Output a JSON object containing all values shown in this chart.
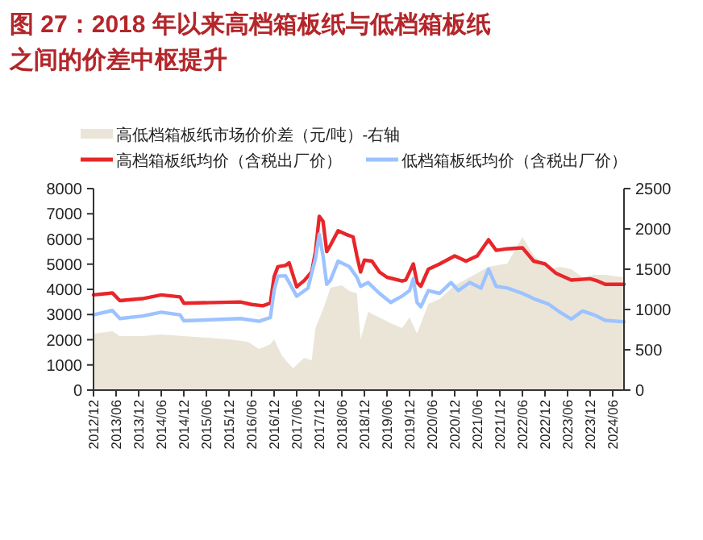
{
  "chart_data": {
    "type": "line",
    "title": "图 27：2018 年以来高档箱板纸与低档箱板纸之间的价差中枢提升",
    "legend": "top",
    "grid": false,
    "marker": "none",
    "line_style": "solid",
    "xlim": [
      "2012-12",
      "2024-09"
    ],
    "xticks": [
      {
        "value": "2012-12",
        "label": "2012/12"
      },
      {
        "value": "2013-06",
        "label": "2013/06"
      },
      {
        "value": "2013-12",
        "label": "2013/12"
      },
      {
        "value": "2014-06",
        "label": "2014/06"
      },
      {
        "value": "2014-12",
        "label": "2014/12"
      },
      {
        "value": "2015-06",
        "label": "2015/06"
      },
      {
        "value": "2015-12",
        "label": "2015/12"
      },
      {
        "value": "2016-06",
        "label": "2016/06"
      },
      {
        "value": "2016-12",
        "label": "2016/12"
      },
      {
        "value": "2017-06",
        "label": "2017/06"
      },
      {
        "value": "2017-12",
        "label": "2017/12"
      },
      {
        "value": "2018-06",
        "label": "2018/06"
      },
      {
        "value": "2018-12",
        "label": "2018/12"
      },
      {
        "value": "2019-06",
        "label": "2019/06"
      },
      {
        "value": "2019-12",
        "label": "2019/12"
      },
      {
        "value": "2020-06",
        "label": "2020/06"
      },
      {
        "value": "2020-12",
        "label": "2020/12"
      },
      {
        "value": "2021-06",
        "label": "2021/06"
      },
      {
        "value": "2021-12",
        "label": "2021/12"
      },
      {
        "value": "2022-06",
        "label": "2022/06"
      },
      {
        "value": "2022-12",
        "label": "2022/12"
      },
      {
        "value": "2023-06",
        "label": "2023/06"
      },
      {
        "value": "2023-12",
        "label": "2023/12"
      },
      {
        "value": "2024-06",
        "label": "2024/06"
      }
    ],
    "ylim": [
      0,
      8000
    ],
    "yticks": [
      0,
      1000,
      2000,
      3000,
      4000,
      5000,
      6000,
      7000,
      8000
    ],
    "y2lim": [
      0,
      2500
    ],
    "y2ticks": [
      0,
      500,
      1000,
      1500,
      2000,
      2500
    ],
    "series": [
      {
        "name": "高低档箱板纸市场价价差（元/吨）-右轴",
        "type": "area",
        "axis": "y2",
        "color": "#ebe5d8",
        "x": [
          "2012-12",
          "2013-05",
          "2013-07",
          "2014-01",
          "2014-06",
          "2014-12",
          "2015-12",
          "2016-05",
          "2016-08",
          "2016-11",
          "2016-12",
          "2017-02",
          "2017-05",
          "2017-08",
          "2017-10",
          "2017-11",
          "2018-01",
          "2018-03",
          "2018-06",
          "2018-08",
          "2018-10",
          "2018-11",
          "2019-01",
          "2019-04",
          "2019-07",
          "2019-10",
          "2019-12",
          "2020-02",
          "2020-05",
          "2020-08",
          "2020-12",
          "2021-04",
          "2021-09",
          "2022-02",
          "2022-06",
          "2022-09",
          "2023-01",
          "2023-04",
          "2023-07",
          "2023-10",
          "2024-01",
          "2024-04",
          "2024-09"
        ],
        "values": [
          700,
          730,
          670,
          670,
          690,
          670,
          630,
          600,
          510,
          570,
          630,
          430,
          270,
          400,
          370,
          770,
          1000,
          1270,
          1300,
          1230,
          1200,
          630,
          970,
          900,
          830,
          770,
          900,
          700,
          1070,
          1130,
          1300,
          1400,
          1530,
          1570,
          1900,
          1670,
          1500,
          1530,
          1500,
          1400,
          1430,
          1430,
          1400
        ]
      },
      {
        "name": "高档箱板纸均价（含税出厂价）",
        "color": "#e8262a",
        "x": [
          "2012-12",
          "2013-04",
          "2013-05",
          "2013-07",
          "2014-01",
          "2014-06",
          "2014-11",
          "2014-12",
          "2016-03",
          "2016-06",
          "2016-09",
          "2016-11",
          "2016-12",
          "2017-01",
          "2017-03",
          "2017-04",
          "2017-06",
          "2017-08",
          "2017-10",
          "2017-11",
          "2017-12",
          "2018-01",
          "2018-02",
          "2018-03",
          "2018-05",
          "2018-07",
          "2018-09",
          "2018-10",
          "2018-11",
          "2018-12",
          "2019-02",
          "2019-04",
          "2019-06",
          "2019-10",
          "2019-11",
          "2020-01",
          "2020-02",
          "2020-03",
          "2020-05",
          "2020-08",
          "2020-12",
          "2021-03",
          "2021-06",
          "2021-09",
          "2021-11",
          "2022-02",
          "2022-06",
          "2022-09",
          "2022-12",
          "2023-03",
          "2023-07",
          "2023-12",
          "2024-02",
          "2024-04",
          "2024-09"
        ],
        "values": [
          3780,
          3840,
          3860,
          3550,
          3630,
          3780,
          3700,
          3450,
          3500,
          3400,
          3350,
          3450,
          4500,
          4900,
          4950,
          5050,
          4100,
          4350,
          4700,
          5500,
          6900,
          6700,
          5500,
          5760,
          6330,
          6190,
          6080,
          5330,
          4690,
          5160,
          5120,
          4690,
          4480,
          4330,
          4370,
          5010,
          4270,
          4120,
          4800,
          5010,
          5330,
          5120,
          5330,
          5970,
          5550,
          5610,
          5650,
          5120,
          5010,
          4630,
          4370,
          4420,
          4330,
          4200,
          4200
        ]
      },
      {
        "name": "低档箱板纸均价（含税出厂价）",
        "color": "#9cc3ff",
        "x": [
          "2012-12",
          "2013-05",
          "2013-07",
          "2014-01",
          "2014-06",
          "2014-11",
          "2014-12",
          "2016-03",
          "2016-08",
          "2016-11",
          "2016-12",
          "2017-01",
          "2017-03",
          "2017-06",
          "2017-09",
          "2017-11",
          "2017-12",
          "2018-01",
          "2018-02",
          "2018-03",
          "2018-05",
          "2018-08",
          "2018-10",
          "2018-11",
          "2019-01",
          "2019-04",
          "2019-07",
          "2019-10",
          "2019-12",
          "2020-01",
          "2020-02",
          "2020-03",
          "2020-05",
          "2020-08",
          "2020-11",
          "2021-01",
          "2021-04",
          "2021-07",
          "2021-09",
          "2021-11",
          "2022-02",
          "2022-06",
          "2022-09",
          "2023-01",
          "2023-04",
          "2023-07",
          "2023-10",
          "2024-01",
          "2024-04",
          "2024-09"
        ],
        "values": [
          2990,
          3160,
          2840,
          2940,
          3090,
          2990,
          2750,
          2840,
          2730,
          2880,
          3950,
          4520,
          4540,
          3730,
          4050,
          5230,
          6190,
          5330,
          4200,
          4370,
          5120,
          4900,
          4480,
          4120,
          4270,
          3840,
          3480,
          3730,
          3950,
          4420,
          3480,
          3310,
          3950,
          3840,
          4270,
          3950,
          4270,
          4050,
          4800,
          4120,
          4050,
          3840,
          3630,
          3410,
          3090,
          2820,
          3140,
          2990,
          2770,
          2710
        ]
      }
    ]
  }
}
